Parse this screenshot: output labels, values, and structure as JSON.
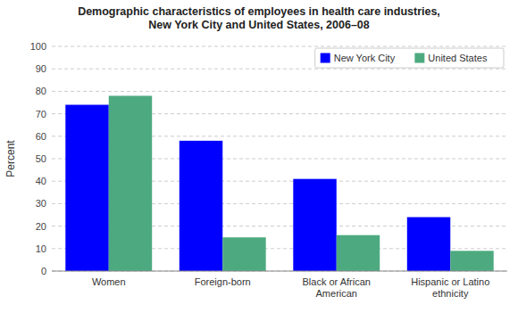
{
  "chart_data": {
    "type": "bar",
    "title": "Demographic characteristics of employees in health care industries,\nNew York City and United States, 2006–08",
    "categories": [
      "Women",
      "Foreign-born",
      "Black or African\nAmerican",
      "Hispanic or Latino\nethnicity"
    ],
    "series": [
      {
        "name": "New York City",
        "color": "#0000ff",
        "values": [
          74,
          58,
          41,
          24
        ]
      },
      {
        "name": "United States",
        "color": "#4daa80",
        "values": [
          78,
          15,
          16,
          9
        ]
      }
    ],
    "ylabel": "Percent",
    "ylim": [
      0,
      100
    ],
    "yticks": [
      0,
      10,
      20,
      30,
      40,
      50,
      60,
      70,
      80,
      90,
      100
    ],
    "grid": true,
    "legend": "upper right"
  }
}
